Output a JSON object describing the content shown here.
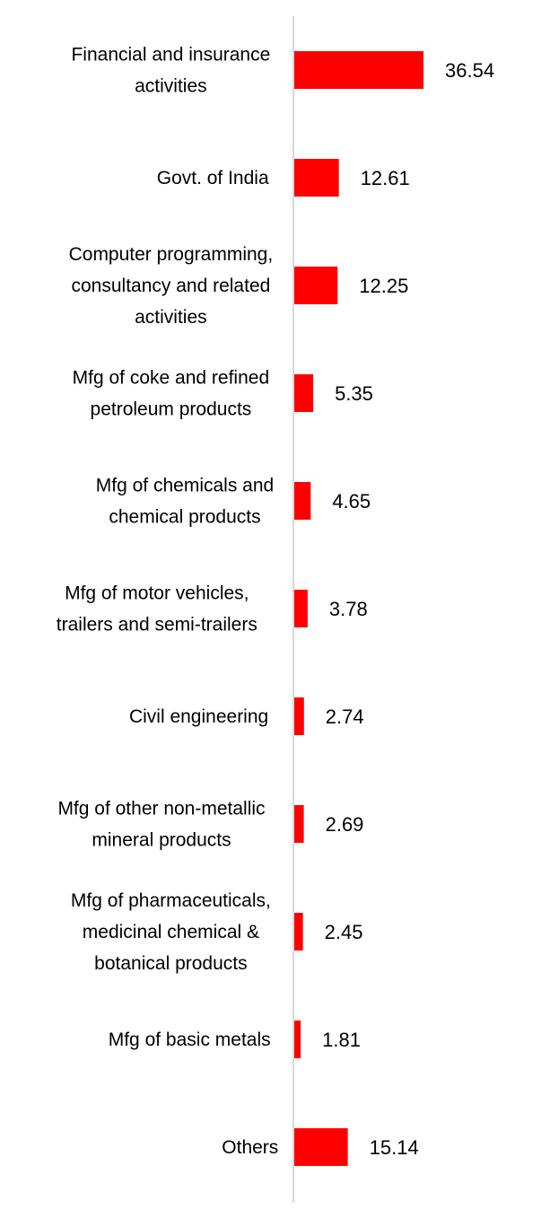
{
  "chart_data": {
    "type": "bar",
    "orientation": "horizontal",
    "categories": [
      [
        "Financial and insurance",
        "activities"
      ],
      [
        "Govt. of India"
      ],
      [
        "Computer programming,",
        "consultancy and related",
        "activities"
      ],
      [
        "Mfg of coke and refined",
        "petroleum products"
      ],
      [
        "Mfg of chemicals and",
        "chemical products"
      ],
      [
        "Mfg of motor vehicles,",
        "trailers and semi-trailers"
      ],
      [
        "Civil engineering"
      ],
      [
        "Mfg of other non-metallic",
        "mineral products"
      ],
      [
        "Mfg of pharmaceuticals,",
        "medicinal chemical &",
        "botanical products"
      ],
      [
        "Mfg of basic metals"
      ],
      [
        "Others"
      ]
    ],
    "values": [
      36.54,
      12.61,
      12.25,
      5.35,
      4.65,
      3.78,
      2.74,
      2.69,
      2.45,
      1.81,
      15.14
    ],
    "value_labels": [
      "36.54",
      "12.61",
      "12.25",
      "5.35",
      "4.65",
      "3.78",
      "2.74",
      "2.69",
      "2.45",
      "1.81",
      "15.14"
    ],
    "xlim": [
      0,
      100
    ],
    "bar_color": "#ff0000",
    "axis_color": "#d9d9d9",
    "grid": false,
    "legend": "none"
  }
}
